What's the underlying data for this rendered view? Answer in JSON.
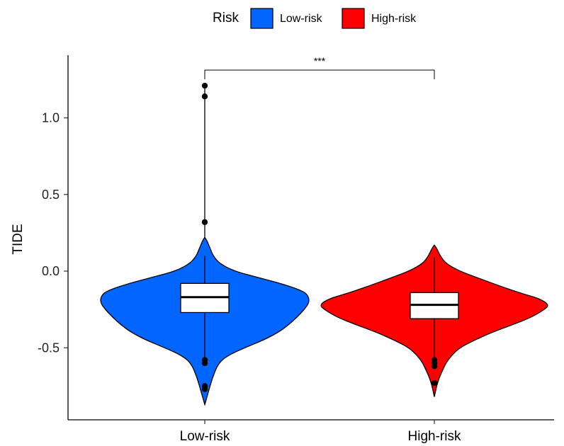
{
  "chart_data": {
    "type": "violin",
    "title": "",
    "xlabel": "",
    "ylabel": "TIDE",
    "ylim": [
      -0.9,
      1.35
    ],
    "yticks": [
      -0.5,
      0.0,
      0.5,
      1.0
    ],
    "ytick_labels": [
      "-0.5",
      "0.0",
      "0.5",
      "1.0"
    ],
    "categories": [
      "Low-risk",
      "High-risk"
    ],
    "legend": {
      "title": "Risk",
      "position": "top",
      "items": [
        {
          "label": "Low-risk",
          "color": "#0066FF"
        },
        {
          "label": "High-risk",
          "color": "#FF0000"
        }
      ]
    },
    "grid": false,
    "series": [
      {
        "name": "Low-risk",
        "color": "#0066FF",
        "min": -0.87,
        "max": 0.22,
        "box": {
          "q1": -0.27,
          "median": -0.17,
          "q3": -0.08
        },
        "whisker_low": -0.57,
        "whisker_high": 0.1,
        "outliers": [
          1.21,
          1.14,
          0.32,
          -0.58,
          -0.6,
          -0.75,
          -0.77
        ],
        "density": [
          [
            -0.87,
            0.0
          ],
          [
            -0.8,
            0.03
          ],
          [
            -0.7,
            0.07
          ],
          [
            -0.6,
            0.13
          ],
          [
            -0.55,
            0.22
          ],
          [
            -0.5,
            0.38
          ],
          [
            -0.45,
            0.56
          ],
          [
            -0.4,
            0.7
          ],
          [
            -0.35,
            0.8
          ],
          [
            -0.3,
            0.88
          ],
          [
            -0.25,
            0.95
          ],
          [
            -0.2,
            1.0
          ],
          [
            -0.15,
            0.98
          ],
          [
            -0.12,
            0.9
          ],
          [
            -0.08,
            0.72
          ],
          [
            -0.04,
            0.5
          ],
          [
            0.0,
            0.28
          ],
          [
            0.05,
            0.14
          ],
          [
            0.1,
            0.08
          ],
          [
            0.15,
            0.05
          ],
          [
            0.2,
            0.02
          ],
          [
            0.22,
            0.0
          ]
        ]
      },
      {
        "name": "High-risk",
        "color": "#FF0000",
        "min": -0.82,
        "max": 0.17,
        "box": {
          "q1": -0.31,
          "median": -0.22,
          "q3": -0.14
        },
        "whisker_low": -0.58,
        "whisker_high": 0.09,
        "outliers": [
          -0.58,
          -0.6,
          -0.62,
          -0.73
        ],
        "density": [
          [
            -0.82,
            0.0
          ],
          [
            -0.75,
            0.02
          ],
          [
            -0.7,
            0.04
          ],
          [
            -0.65,
            0.07
          ],
          [
            -0.6,
            0.1
          ],
          [
            -0.55,
            0.15
          ],
          [
            -0.5,
            0.22
          ],
          [
            -0.45,
            0.35
          ],
          [
            -0.4,
            0.5
          ],
          [
            -0.35,
            0.68
          ],
          [
            -0.3,
            0.85
          ],
          [
            -0.25,
            0.96
          ],
          [
            -0.22,
            1.0
          ],
          [
            -0.18,
            0.92
          ],
          [
            -0.15,
            0.78
          ],
          [
            -0.1,
            0.58
          ],
          [
            -0.05,
            0.4
          ],
          [
            0.0,
            0.22
          ],
          [
            0.05,
            0.1
          ],
          [
            0.1,
            0.05
          ],
          [
            0.15,
            0.02
          ],
          [
            0.17,
            0.0
          ]
        ]
      }
    ],
    "annotations": [
      {
        "text": "***",
        "between": [
          "Low-risk",
          "High-risk"
        ],
        "y": 1.32
      }
    ]
  }
}
